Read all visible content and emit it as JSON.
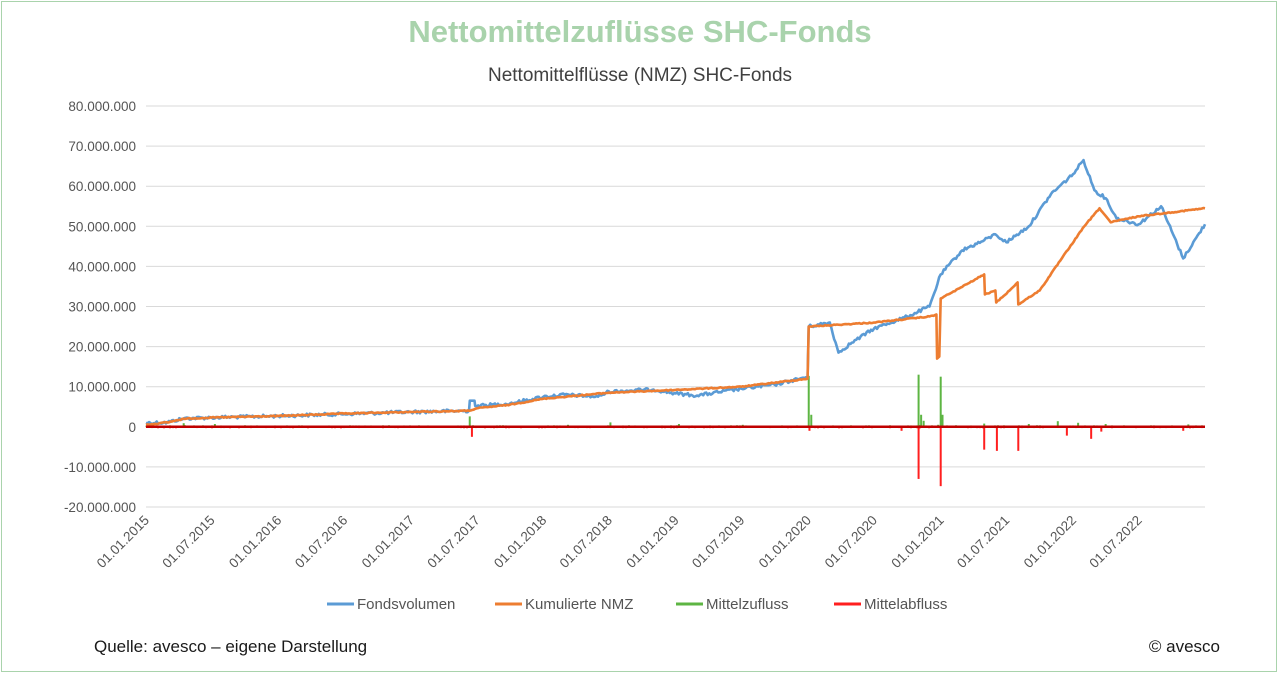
{
  "header": {
    "title": "Nettomittelzuflüsse SHC-Fonds",
    "subtitle": "Nettomittelflüsse (NMZ) SHC-Fonds"
  },
  "footer": {
    "source": "Quelle: avesco – eigene Darstellung",
    "copyright": "© avesco"
  },
  "colors": {
    "title": "#a9d3ac",
    "frame": "#a9d3ac",
    "grid": "#d9d9d9",
    "zero_line": "#c00000"
  },
  "chart_data": {
    "type": "line",
    "title": "Nettomittelflüsse (NMZ) SHC-Fonds",
    "ylim": [
      -20000000,
      80000000
    ],
    "y_ticks": [
      80000000,
      70000000,
      60000000,
      50000000,
      40000000,
      30000000,
      20000000,
      10000000,
      0,
      -10000000,
      -20000000
    ],
    "y_tick_labels": [
      "80.000.000",
      "70.000.000",
      "60.000.000",
      "50.000.000",
      "40.000.000",
      "30.000.000",
      "20.000.000",
      "10.000.000",
      "0",
      "-10.000.000",
      "-20.000.000"
    ],
    "xlim": [
      "2015-01-01",
      "2022-12-31"
    ],
    "x_ticks": [
      "2015-01-01",
      "2015-07-01",
      "2016-01-01",
      "2016-07-01",
      "2017-01-01",
      "2017-07-01",
      "2018-01-01",
      "2018-07-01",
      "2019-01-01",
      "2019-07-01",
      "2020-01-01",
      "2020-07-01",
      "2021-01-01",
      "2021-07-01",
      "2022-01-01",
      "2022-07-01"
    ],
    "x_tick_labels": [
      "01.01.2015",
      "01.07.2015",
      "01.01.2016",
      "01.07.2016",
      "01.01.2017",
      "01.07.2017",
      "01.01.2018",
      "01.07.2018",
      "01.01.2019",
      "01.07.2019",
      "01.01.2020",
      "01.07.2020",
      "01.01.2021",
      "01.07.2021",
      "01.01.2022",
      "01.07.2022"
    ],
    "grid": true,
    "legend_position": "bottom",
    "series": [
      {
        "name": "Fondsvolumen",
        "color": "#5b9bd5",
        "kind": "line",
        "points": [
          [
            "2015-01-01",
            1000000
          ],
          [
            "2015-03-01",
            1100000
          ],
          [
            "2015-04-15",
            2100000
          ],
          [
            "2015-07-01",
            2300000
          ],
          [
            "2016-01-01",
            2700000
          ],
          [
            "2016-07-01",
            3200000
          ],
          [
            "2017-01-01",
            3700000
          ],
          [
            "2017-06-10",
            4000000
          ],
          [
            "2017-06-12",
            6500000
          ],
          [
            "2017-06-25",
            6500000
          ],
          [
            "2017-06-27",
            5200000
          ],
          [
            "2017-10-01",
            5800000
          ],
          [
            "2018-01-01",
            7500000
          ],
          [
            "2018-03-01",
            8000000
          ],
          [
            "2018-06-01",
            7500000
          ],
          [
            "2018-07-01",
            8800000
          ],
          [
            "2018-11-01",
            9300000
          ],
          [
            "2019-01-01",
            8300000
          ],
          [
            "2019-03-01",
            7800000
          ],
          [
            "2019-07-01",
            9500000
          ],
          [
            "2019-10-01",
            10500000
          ],
          [
            "2019-12-31",
            12500000
          ],
          [
            "2020-01-03",
            25000000
          ],
          [
            "2020-03-01",
            26000000
          ],
          [
            "2020-03-25",
            18500000
          ],
          [
            "2020-05-01",
            21000000
          ],
          [
            "2020-07-01",
            24500000
          ],
          [
            "2020-10-01",
            27500000
          ],
          [
            "2020-12-01",
            30000000
          ],
          [
            "2021-01-01",
            38000000
          ],
          [
            "2021-03-01",
            44000000
          ],
          [
            "2021-05-01",
            46500000
          ],
          [
            "2021-06-01",
            48000000
          ],
          [
            "2021-07-01",
            46000000
          ],
          [
            "2021-09-01",
            50000000
          ],
          [
            "2021-11-01",
            58000000
          ],
          [
            "2022-01-01",
            63000000
          ],
          [
            "2022-01-30",
            66500000
          ],
          [
            "2022-03-01",
            59000000
          ],
          [
            "2022-04-01",
            57000000
          ],
          [
            "2022-05-01",
            52000000
          ],
          [
            "2022-07-01",
            50500000
          ],
          [
            "2022-09-01",
            55000000
          ],
          [
            "2022-11-01",
            42000000
          ],
          [
            "2022-12-31",
            50500000
          ]
        ]
      },
      {
        "name": "Kumulierte NMZ",
        "color": "#ed7d31",
        "kind": "line",
        "points": [
          [
            "2015-01-01",
            500000
          ],
          [
            "2015-03-01",
            1100000
          ],
          [
            "2015-04-15",
            2000000
          ],
          [
            "2015-07-01",
            2300000
          ],
          [
            "2016-01-01",
            2700000
          ],
          [
            "2016-07-01",
            3300000
          ],
          [
            "2017-01-01",
            3700000
          ],
          [
            "2017-06-10",
            4000000
          ],
          [
            "2017-07-01",
            4600000
          ],
          [
            "2017-10-01",
            5500000
          ],
          [
            "2018-01-01",
            7000000
          ],
          [
            "2018-07-01",
            8500000
          ],
          [
            "2019-01-01",
            9200000
          ],
          [
            "2019-07-01",
            10000000
          ],
          [
            "2019-12-31",
            12000000
          ],
          [
            "2020-01-03",
            25000000
          ],
          [
            "2020-07-01",
            26000000
          ],
          [
            "2020-12-01",
            27500000
          ],
          [
            "2020-12-20",
            28000000
          ],
          [
            "2020-12-22",
            17000000
          ],
          [
            "2020-12-28",
            17500000
          ],
          [
            "2021-01-01",
            32000000
          ],
          [
            "2021-02-01",
            33500000
          ],
          [
            "2021-05-01",
            38000000
          ],
          [
            "2021-05-03",
            33000000
          ],
          [
            "2021-06-01",
            34000000
          ],
          [
            "2021-06-03",
            31000000
          ],
          [
            "2021-07-10",
            34000000
          ],
          [
            "2021-08-01",
            36000000
          ],
          [
            "2021-08-03",
            30500000
          ],
          [
            "2021-10-01",
            34000000
          ],
          [
            "2021-12-01",
            42000000
          ],
          [
            "2022-02-01",
            50000000
          ],
          [
            "2022-03-15",
            54500000
          ],
          [
            "2022-04-15",
            51000000
          ],
          [
            "2022-07-01",
            52500000
          ],
          [
            "2022-10-01",
            53500000
          ],
          [
            "2022-12-31",
            54500000
          ]
        ]
      },
      {
        "name": "Mittelzufluss",
        "color": "#5db543",
        "kind": "spikes",
        "points": [
          [
            "2015-01-05",
            1200000
          ],
          [
            "2015-04-15",
            900000
          ],
          [
            "2015-07-10",
            700000
          ],
          [
            "2017-06-12",
            2600000
          ],
          [
            "2018-03-10",
            500000
          ],
          [
            "2018-07-05",
            1100000
          ],
          [
            "2019-01-10",
            700000
          ],
          [
            "2019-07-05",
            500000
          ],
          [
            "2020-01-03",
            12700000
          ],
          [
            "2020-01-10",
            3000000
          ],
          [
            "2020-11-01",
            13000000
          ],
          [
            "2020-11-08",
            3000000
          ],
          [
            "2020-11-15",
            1500000
          ],
          [
            "2020-12-25",
            500000
          ],
          [
            "2021-01-01",
            12500000
          ],
          [
            "2021-01-06",
            3000000
          ],
          [
            "2021-05-01",
            800000
          ],
          [
            "2021-09-01",
            700000
          ],
          [
            "2021-11-20",
            1400000
          ],
          [
            "2022-01-15",
            1000000
          ],
          [
            "2022-04-01",
            700000
          ],
          [
            "2022-11-15",
            600000
          ]
        ]
      },
      {
        "name": "Mittelabfluss",
        "color": "#ff1f1f",
        "kind": "spikes",
        "points": [
          [
            "2017-06-18",
            -2500000
          ],
          [
            "2020-01-05",
            -1000000
          ],
          [
            "2020-09-15",
            -1000000
          ],
          [
            "2020-11-01",
            -13000000
          ],
          [
            "2021-01-01",
            -14800000
          ],
          [
            "2021-05-01",
            -5700000
          ],
          [
            "2021-06-05",
            -6000000
          ],
          [
            "2021-08-03",
            -6000000
          ],
          [
            "2021-12-15",
            -2200000
          ],
          [
            "2022-02-20",
            -3000000
          ],
          [
            "2022-03-20",
            -1200000
          ],
          [
            "2022-11-01",
            -1000000
          ]
        ]
      }
    ]
  }
}
